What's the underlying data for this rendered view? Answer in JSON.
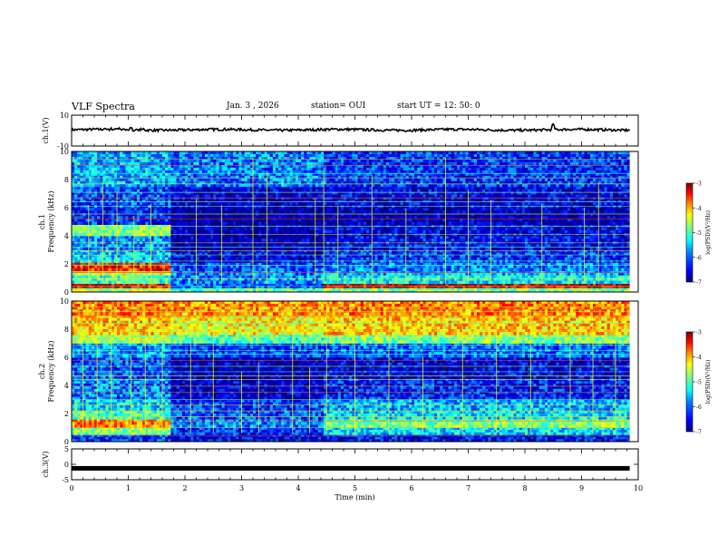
{
  "header": {
    "title": "VLF Spectra",
    "date": "Jan. 3 , 2026",
    "station": "station= OUI",
    "start_ut": "start UT =  12: 50: 0"
  },
  "colors": {
    "cmap": [
      "#000080",
      "#0000ff",
      "#0080ff",
      "#00ffff",
      "#80ff80",
      "#ffff00",
      "#ff8000",
      "#ff0000",
      "#800000"
    ],
    "trace": "#000000"
  },
  "chart_data": [
    {
      "type": "line",
      "name": "ch1-waveform",
      "ylabel": "ch.1(V)",
      "ylim": [
        -10,
        10
      ],
      "y_ticks": [
        "10",
        "-10"
      ],
      "x": [
        0,
        1,
        2,
        3,
        4,
        5,
        6,
        7,
        8,
        9,
        9.85
      ],
      "y": [
        0.5,
        0.5,
        0.5,
        0.5,
        0.5,
        0.5,
        0.5,
        0.5,
        0.5,
        0.5,
        0.5
      ]
    },
    {
      "type": "heatmap",
      "name": "ch1-spectrogram",
      "ylabel_lines": [
        "ch.1",
        "Frequency (kHz)"
      ],
      "ylim": [
        0,
        10
      ],
      "y_ticks": [
        "0",
        "2",
        "4",
        "6",
        "8",
        "10"
      ],
      "colorbar": {
        "label": "log(PSD)(V²/Hz)",
        "ticks": [
          "-3",
          "-4",
          "-5",
          "-6",
          "-7"
        ],
        "range": [
          -7,
          -3
        ]
      },
      "x_segments": [
        [
          0,
          1.75
        ],
        [
          1.75,
          4.4
        ],
        [
          4.4,
          9.85
        ]
      ],
      "bands": [
        {
          "f": [
            0,
            0.3
          ],
          "levels": [
            -4.8,
            -5.2,
            -5.0
          ]
        },
        {
          "f": [
            0.3,
            0.6
          ],
          "levels": [
            -3.4,
            -6.2,
            -3.3
          ]
        },
        {
          "f": [
            0.6,
            1.2
          ],
          "levels": [
            -5.3,
            -6.0,
            -5.5
          ]
        },
        {
          "f": [
            1.2,
            1.5
          ],
          "levels": [
            -4.7,
            -6.0,
            -5.8
          ]
        },
        {
          "f": [
            1.5,
            2.1
          ],
          "levels": [
            -3.6,
            -6.2,
            -6.0
          ]
        },
        {
          "f": [
            2.1,
            3.0
          ],
          "levels": [
            -5.7,
            -6.6,
            -6.3
          ]
        },
        {
          "f": [
            3.0,
            4.0
          ],
          "levels": [
            -6.0,
            -6.8,
            -6.5
          ]
        },
        {
          "f": [
            4.0,
            4.8
          ],
          "levels": [
            -5.0,
            -6.8,
            -6.6
          ]
        },
        {
          "f": [
            4.8,
            6.0
          ],
          "levels": [
            -6.4,
            -6.9,
            -6.8
          ]
        },
        {
          "f": [
            6.0,
            7.5
          ],
          "levels": [
            -6.2,
            -6.7,
            -6.6
          ]
        },
        {
          "f": [
            7.5,
            10
          ],
          "levels": [
            -5.8,
            -6.0,
            -6.3
          ]
        }
      ],
      "spikes_t": [
        0.3,
        0.55,
        0.8,
        1.1,
        1.4,
        2.2,
        2.65,
        3.2,
        3.45,
        4.3,
        4.45,
        4.7,
        5.3,
        5.9,
        6.6,
        7.0,
        7.4,
        8.3,
        9.05,
        9.3
      ]
    },
    {
      "type": "heatmap",
      "name": "ch2-spectrogram",
      "ylabel_lines": [
        "ch.2",
        "Frequency (kHz)"
      ],
      "ylim": [
        0,
        10
      ],
      "y_ticks": [
        "0",
        "2",
        "4",
        "6",
        "8",
        "10"
      ],
      "colorbar": {
        "label": "log(PSD)(V²/Hz)",
        "ticks": [
          "-3",
          "-4",
          "-5",
          "-6",
          "-7"
        ],
        "range": [
          -7,
          -3
        ]
      },
      "x_segments": [
        [
          0,
          1.75
        ],
        [
          1.75,
          4.4
        ],
        [
          4.4,
          9.85
        ]
      ],
      "bands": [
        {
          "f": [
            0,
            0.5
          ],
          "levels": [
            -6.3,
            -6.6,
            -6.5
          ]
        },
        {
          "f": [
            0.5,
            1.0
          ],
          "levels": [
            -5.0,
            -6.3,
            -5.6
          ]
        },
        {
          "f": [
            1.0,
            1.6
          ],
          "levels": [
            -4.0,
            -6.0,
            -5.0
          ]
        },
        {
          "f": [
            1.6,
            2.2
          ],
          "levels": [
            -5.2,
            -6.2,
            -5.6
          ]
        },
        {
          "f": [
            2.2,
            3.0
          ],
          "levels": [
            -5.6,
            -6.3,
            -5.8
          ]
        },
        {
          "f": [
            3.0,
            4.5
          ],
          "levels": [
            -6.0,
            -6.7,
            -6.4
          ]
        },
        {
          "f": [
            4.5,
            6.0
          ],
          "levels": [
            -6.2,
            -6.8,
            -6.6
          ]
        },
        {
          "f": [
            6.0,
            7.0
          ],
          "levels": [
            -5.9,
            -6.3,
            -6.1
          ]
        },
        {
          "f": [
            7.0,
            7.6
          ],
          "levels": [
            -4.8,
            -5.2,
            -5.0
          ]
        },
        {
          "f": [
            7.6,
            9.0
          ],
          "levels": [
            -4.3,
            -4.5,
            -4.3
          ]
        },
        {
          "f": [
            9.0,
            10
          ],
          "levels": [
            -4.0,
            -4.1,
            -4.0
          ]
        }
      ],
      "spikes_t": [
        0.2,
        0.45,
        0.7,
        1.05,
        1.3,
        1.6,
        2.1,
        2.5,
        3.0,
        3.3,
        3.9,
        4.2,
        4.5,
        5.0,
        5.6,
        6.2,
        6.9,
        7.5,
        8.1,
        8.8,
        9.2,
        9.6
      ]
    },
    {
      "type": "line",
      "name": "ch3-waveform",
      "ylabel": "ch.3(V)",
      "ylim": [
        -5,
        5
      ],
      "y_ticks": [
        "5",
        "0",
        "-5"
      ],
      "x": [
        0,
        9.85
      ],
      "y": [
        -1.3,
        -1.3
      ]
    }
  ],
  "x_axis": {
    "label": "Time (min)",
    "ticks": [
      "0",
      "1",
      "2",
      "3",
      "4",
      "5",
      "6",
      "7",
      "8",
      "9",
      "10"
    ],
    "range": [
      0,
      10
    ]
  }
}
